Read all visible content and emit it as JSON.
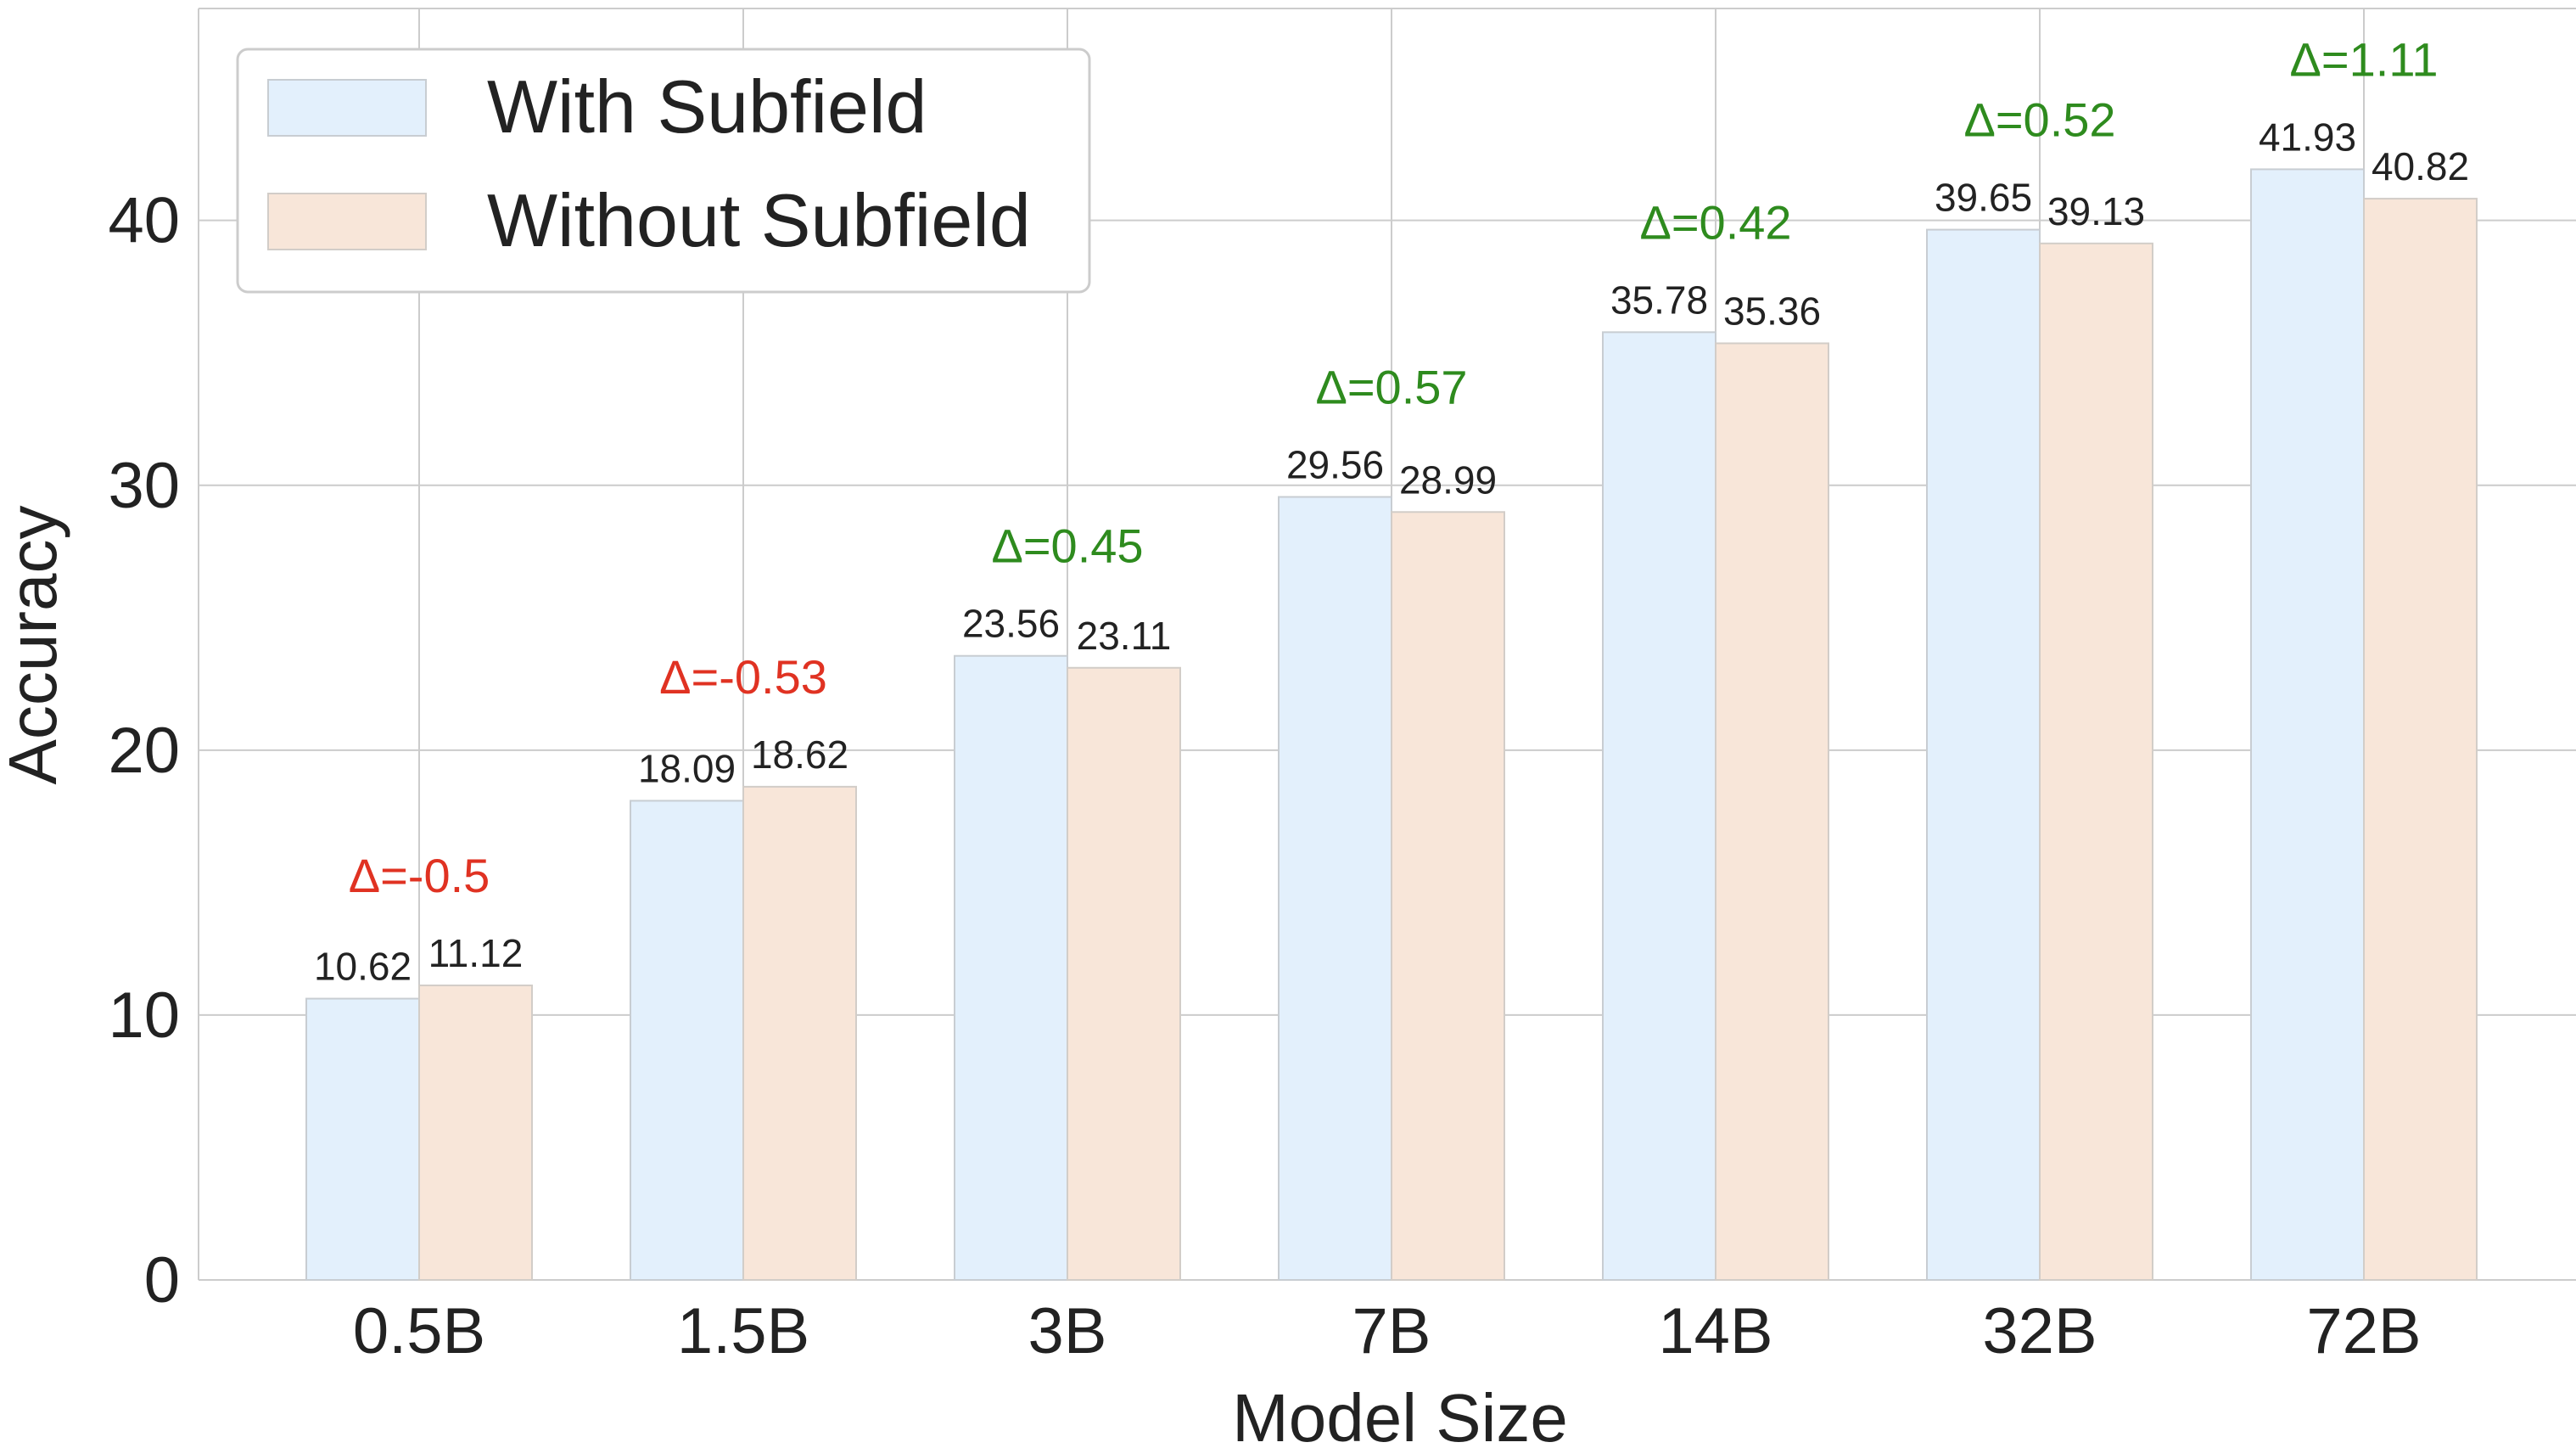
{
  "chart_data": {
    "type": "bar",
    "categories": [
      "0.5B",
      "1.5B",
      "3B",
      "7B",
      "14B",
      "32B",
      "72B"
    ],
    "series": [
      {
        "name": "With Subfield",
        "values": [
          10.62,
          18.09,
          23.56,
          29.56,
          35.78,
          39.65,
          41.93
        ],
        "color": "#e3f0fc"
      },
      {
        "name": "Without Subfield",
        "values": [
          11.12,
          18.62,
          23.11,
          28.99,
          35.36,
          39.13,
          40.82
        ],
        "color": "#f8e6d9"
      }
    ],
    "value_labels": [
      [
        "10.62",
        "18.09",
        "23.56",
        "29.56",
        "35.78",
        "39.65",
        "41.93"
      ],
      [
        "11.12",
        "18.62",
        "23.11",
        "28.99",
        "35.36",
        "39.13",
        "40.82"
      ]
    ],
    "deltas": [
      "Δ=-0.5",
      "Δ=-0.53",
      "Δ=0.45",
      "Δ=0.57",
      "Δ=0.42",
      "Δ=0.52",
      "Δ=1.11"
    ],
    "delta_colors": {
      "positive": "#2e8b1e",
      "negative": "#e03222"
    },
    "xlabel": "Model Size",
    "ylabel": "Accuracy",
    "ylim": [
      0,
      48
    ],
    "yticks": [
      0,
      10,
      20,
      30,
      40
    ],
    "grid": true,
    "legend_position": "top-left"
  }
}
